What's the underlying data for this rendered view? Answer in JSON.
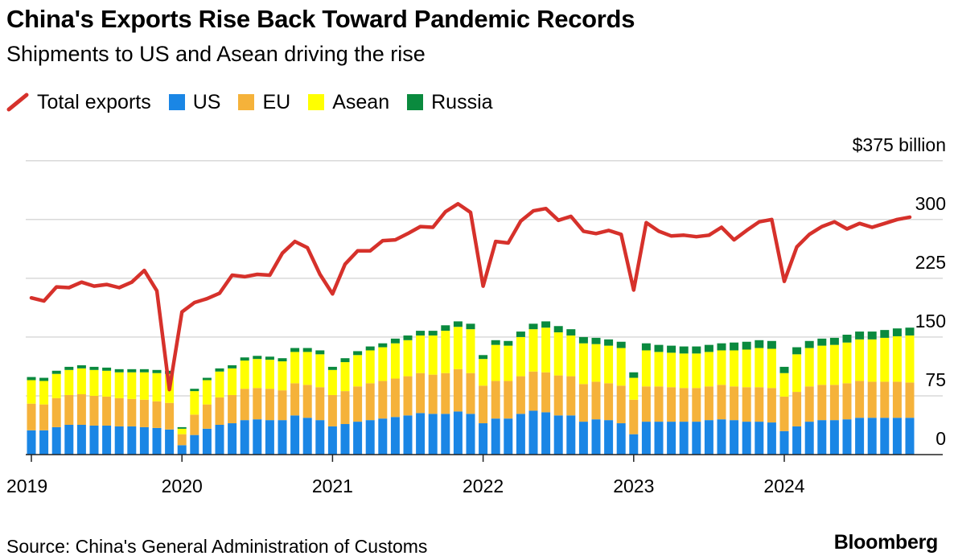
{
  "header": {
    "title": "China's Exports Rise Back Toward Pandemic Records",
    "subtitle": "Shipments to US and Asean driving the rise"
  },
  "legend": [
    {
      "label": "Total exports",
      "kind": "line",
      "color": "#d6312b"
    },
    {
      "label": "US",
      "kind": "box",
      "color": "#1a86e5"
    },
    {
      "label": "EU",
      "kind": "box",
      "color": "#f5b23a"
    },
    {
      "label": "Asean",
      "kind": "box",
      "color": "#ffff00"
    },
    {
      "label": "Russia",
      "kind": "box",
      "color": "#0a8a3e"
    }
  ],
  "footer": {
    "source": "Source: China's General Administration of Customs",
    "brand": "Bloomberg"
  },
  "chart_data": {
    "type": "bar",
    "stacked": true,
    "title": "China's Exports Rise Back Toward Pandemic Records",
    "subtitle": "Shipments to US and Asean driving the rise",
    "y_unit_label": "$375 billion",
    "ylim": [
      0,
      375
    ],
    "y_ticks": [
      0,
      75,
      150,
      225,
      300,
      375
    ],
    "y_tick_labels": [
      "0",
      "75",
      "150",
      "225",
      "300",
      "$375 billion"
    ],
    "x_tick_labels": [
      "2019",
      "2020",
      "2021",
      "2022",
      "2023",
      "2024"
    ],
    "x_tick_month_index": [
      0,
      12,
      24,
      36,
      48,
      60
    ],
    "grid": true,
    "legend_position": "top",
    "colors": {
      "US": "#1a86e5",
      "EU": "#f5b23a",
      "Asean": "#ffff00",
      "Russia": "#0a8a3e",
      "Total exports": "#d6312b"
    },
    "series": [
      {
        "name": "US",
        "values": [
          31,
          31,
          35,
          38,
          38,
          37,
          37,
          36,
          36,
          35,
          34,
          32,
          12,
          25,
          33,
          38,
          40,
          44,
          45,
          44,
          44,
          50,
          47,
          44,
          36,
          39,
          42,
          44,
          46,
          48,
          50,
          53,
          52,
          52,
          55,
          52,
          40,
          46,
          46,
          52,
          56,
          54,
          50,
          50,
          42,
          45,
          44,
          40,
          26,
          42,
          42,
          42,
          42,
          42,
          44,
          45,
          44,
          42,
          42,
          41,
          30,
          36,
          42,
          44,
          44,
          45,
          47,
          47,
          47,
          47,
          47
        ],
        "stack": "exports"
      },
      {
        "name": "EU",
        "values": [
          34,
          33,
          37,
          38,
          39,
          38,
          37,
          36,
          35,
          35,
          34,
          34,
          14,
          26,
          31,
          35,
          36,
          40,
          40,
          40,
          38,
          41,
          42,
          42,
          40,
          42,
          45,
          47,
          48,
          49,
          50,
          51,
          50,
          52,
          54,
          52,
          48,
          48,
          48,
          48,
          50,
          51,
          51,
          50,
          48,
          48,
          47,
          48,
          44,
          45,
          45,
          44,
          43,
          43,
          43,
          44,
          43,
          44,
          44,
          44,
          44,
          44,
          45,
          45,
          45,
          46,
          47,
          46,
          46,
          46,
          45
        ],
        "stack": "exports"
      },
      {
        "name": "Asean",
        "values": [
          30,
          30,
          31,
          32,
          33,
          33,
          33,
          33,
          34,
          35,
          36,
          37,
          7,
          30,
          31,
          33,
          34,
          36,
          37,
          37,
          37,
          40,
          42,
          42,
          32,
          37,
          40,
          42,
          43,
          45,
          46,
          48,
          50,
          54,
          54,
          56,
          34,
          46,
          45,
          50,
          54,
          57,
          55,
          52,
          52,
          48,
          48,
          48,
          28,
          46,
          44,
          44,
          44,
          44,
          44,
          44,
          46,
          48,
          50,
          50,
          30,
          48,
          49,
          50,
          51,
          52,
          53,
          54,
          56,
          58,
          60
        ],
        "stack": "exports"
      },
      {
        "name": "Russia",
        "values": [
          4,
          4,
          4,
          4,
          4,
          4,
          4,
          4,
          4,
          4,
          4,
          4,
          2,
          3,
          3,
          4,
          4,
          4,
          4,
          4,
          4,
          5,
          5,
          5,
          4,
          5,
          5,
          5,
          5,
          6,
          6,
          6,
          6,
          7,
          7,
          7,
          5,
          6,
          6,
          7,
          7,
          8,
          8,
          8,
          8,
          8,
          8,
          8,
          7,
          9,
          9,
          9,
          9,
          9,
          9,
          9,
          10,
          10,
          10,
          10,
          8,
          9,
          9,
          9,
          9,
          10,
          10,
          10,
          10,
          10,
          10
        ],
        "stack": "exports"
      },
      {
        "name": "Total exports",
        "type": "line",
        "values": [
          200,
          196,
          214,
          213,
          220,
          215,
          217,
          213,
          220,
          235,
          209,
          83,
          182,
          194,
          199,
          206,
          229,
          227,
          230,
          229,
          257,
          272,
          264,
          230,
          205,
          243,
          260,
          260,
          273,
          274,
          282,
          291,
          290,
          310,
          320,
          309,
          215,
          272,
          270,
          298,
          311,
          314,
          299,
          304,
          285,
          282,
          286,
          281,
          210,
          296,
          285,
          279,
          280,
          278,
          280,
          290,
          274,
          286,
          297,
          300,
          221,
          265,
          281,
          291,
          297,
          288,
          295,
          290,
          295,
          300,
          303
        ]
      }
    ]
  }
}
